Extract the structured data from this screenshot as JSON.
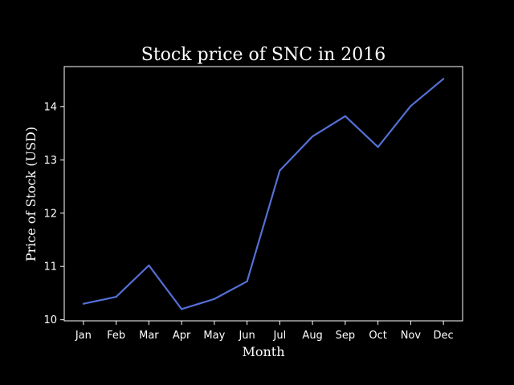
{
  "chart_data": {
    "type": "line",
    "title": "Stock price of SNC in 2016",
    "xlabel": "Month",
    "ylabel": "Price of Stock (USD)",
    "categories": [
      "Jan",
      "Feb",
      "Mar",
      "Apr",
      "May",
      "Jun",
      "Jul",
      "Aug",
      "Sep",
      "Oct",
      "Nov",
      "Dec"
    ],
    "series": [
      {
        "values": [
          10.3,
          10.43,
          11.02,
          10.2,
          10.39,
          10.72,
          12.8,
          13.44,
          13.82,
          13.24,
          14.01,
          14.52
        ]
      }
    ],
    "yticks": [
      10,
      11,
      12,
      13,
      14
    ],
    "ylim": [
      9.98,
      14.75
    ],
    "grid": false,
    "legend": "none",
    "colors": {
      "background": "#000000",
      "axes": "#ffffff",
      "text": "#ffffff",
      "line": "#5470d6"
    }
  }
}
